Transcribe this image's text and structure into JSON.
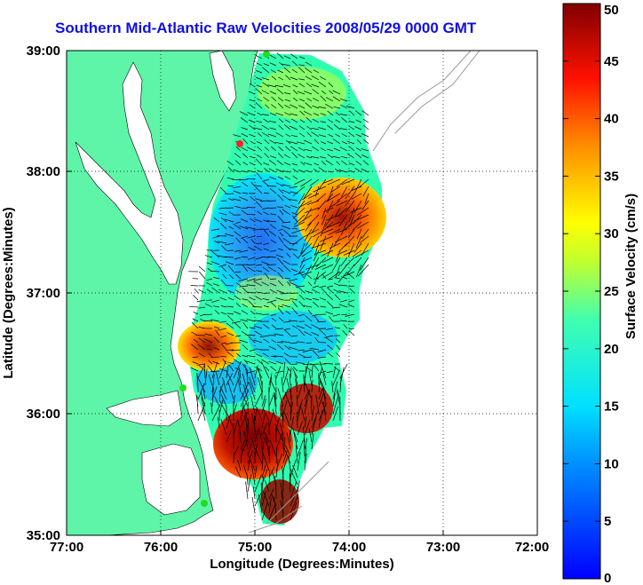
{
  "title": "Southern Mid-Atlantic Raw Velocities 2008/05/29 0000 GMT",
  "x_axis": {
    "label": "Longitude (Degrees:Minutes)",
    "ticks": [
      "77:00",
      "76:00",
      "75:00",
      "74:00",
      "73:00",
      "72:00"
    ]
  },
  "y_axis": {
    "label": "Latitude (Degrees:Minutes)",
    "ticks": [
      "39:00",
      "38:00",
      "37:00",
      "36:00",
      "35:00"
    ]
  },
  "colorbar": {
    "label": "Surface Velocity (cm/s)",
    "ticks": [
      "50",
      "45",
      "40",
      "35",
      "30",
      "25",
      "20",
      "15",
      "10",
      "5",
      "0"
    ],
    "min": 0,
    "max": 50
  },
  "colors": {
    "land": "#5ef5a8",
    "title": "#1010e0",
    "station_green": "#22dd22",
    "station_red": "#ff2020"
  },
  "chart_data": {
    "type": "heatmap",
    "title": "Southern Mid-Atlantic Raw Velocities 2008/05/29 0000 GMT",
    "xlabel": "Longitude (Degrees:Minutes)",
    "ylabel": "Latitude (Degrees:Minutes)",
    "xlim": [
      "77:00 W",
      "72:00 W"
    ],
    "ylim": [
      "35:00 N",
      "39:00 N"
    ],
    "grid": true,
    "colorbar_range": [
      0,
      50
    ],
    "colorbar_label": "Surface Velocity (cm/s)"
  }
}
